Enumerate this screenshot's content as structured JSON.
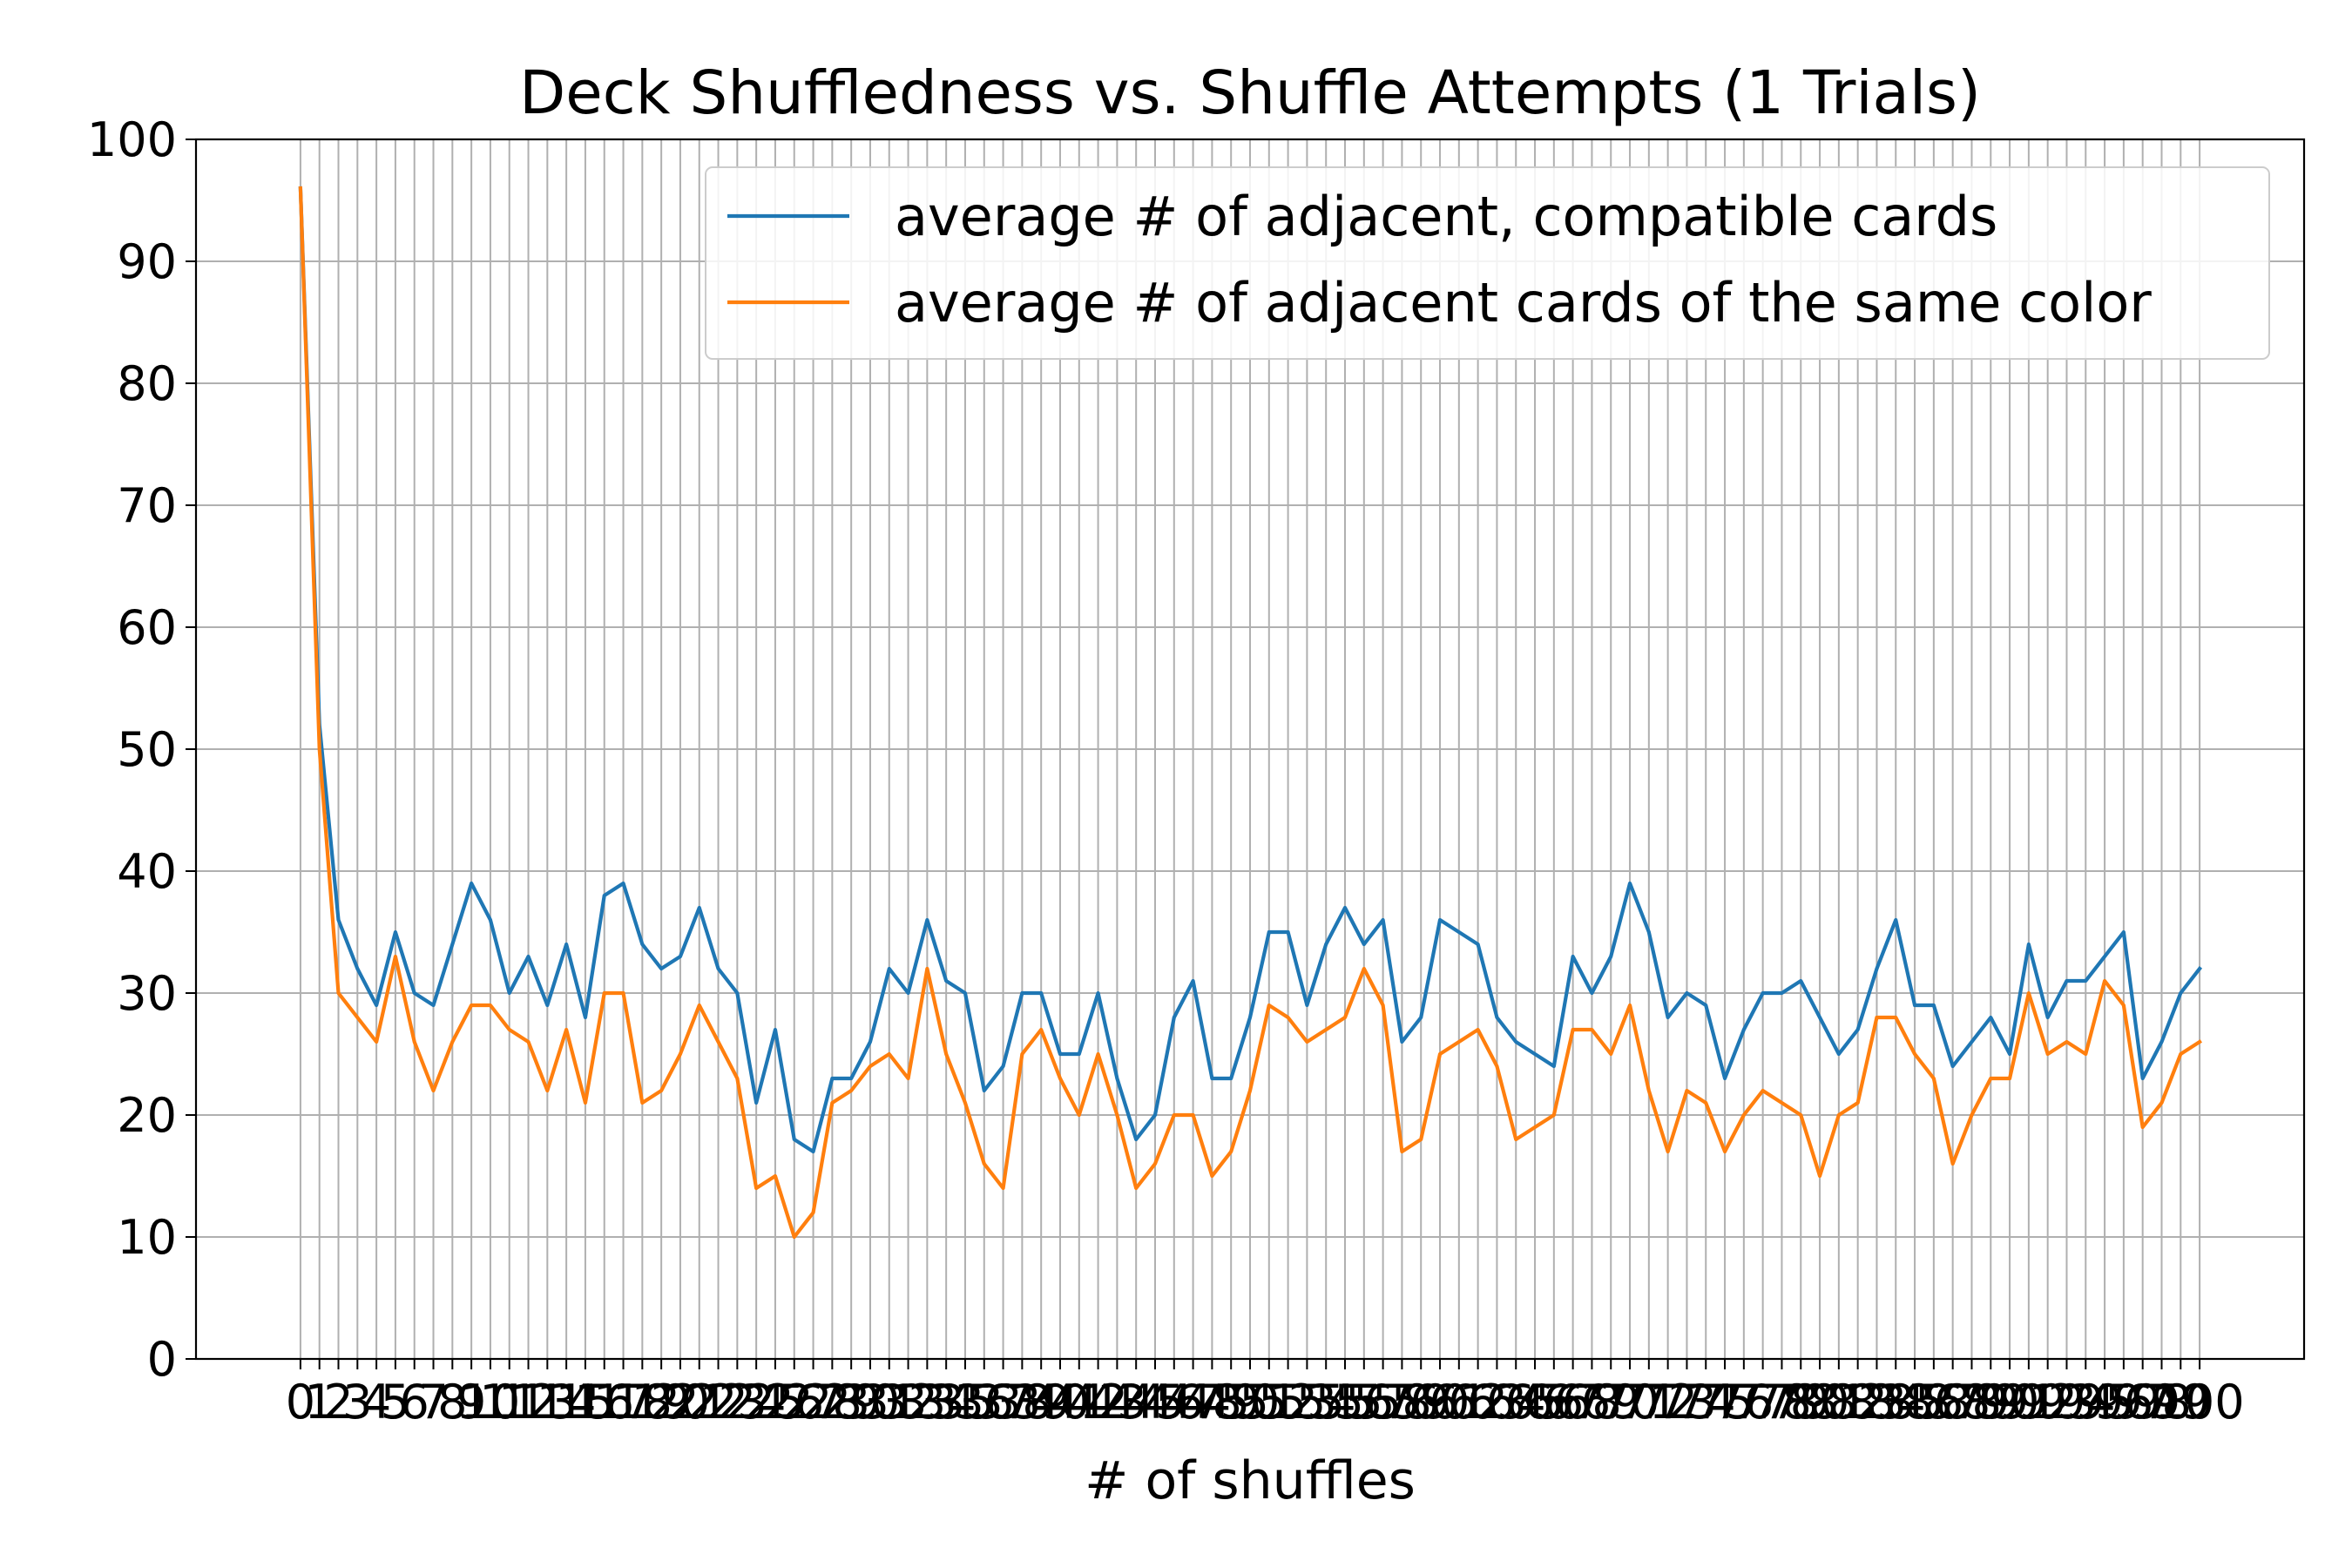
{
  "chart_data": {
    "type": "line",
    "title": "Deck Shuffledness vs. Shuffle Attempts (1 Trials)",
    "xlabel": "# of shuffles",
    "ylabel": "",
    "xlim": [
      -5.5,
      105.5
    ],
    "ylim": [
      0,
      100
    ],
    "yticks": [
      0,
      10,
      20,
      30,
      40,
      50,
      60,
      70,
      80,
      90,
      100
    ],
    "xticks_start": 0,
    "xticks_end": 100,
    "grid": true,
    "legend_position": "top-right",
    "series": [
      {
        "name": "average # of adjacent, compatible cards",
        "color": "#1f77b4",
        "values": [
          96,
          52,
          36,
          32,
          29,
          35,
          30,
          29,
          34,
          39,
          36,
          30,
          33,
          29,
          34,
          28,
          38,
          39,
          34,
          32,
          33,
          37,
          32,
          30,
          21,
          27,
          18,
          17,
          23,
          23,
          26,
          32,
          30,
          36,
          31,
          30,
          22,
          24,
          30,
          30,
          25,
          25,
          30,
          23,
          18,
          20,
          28,
          31,
          23,
          23,
          28,
          35,
          35,
          29,
          34,
          37,
          34,
          36,
          26,
          28,
          36,
          35,
          34,
          28,
          26,
          25,
          24,
          33,
          30,
          33,
          39,
          35,
          28,
          30,
          29,
          23,
          27,
          30,
          30,
          31,
          28,
          25,
          27,
          32,
          36,
          29,
          29,
          24,
          26,
          28,
          25,
          34,
          28,
          31,
          31,
          33,
          35,
          23,
          26,
          30,
          32
        ]
      },
      {
        "name": "average # of adjacent cards of the same color",
        "color": "#ff7f0e",
        "values": [
          96,
          50,
          30,
          28,
          26,
          33,
          26,
          22,
          26,
          29,
          29,
          27,
          26,
          22,
          27,
          21,
          30,
          30,
          21,
          22,
          25,
          29,
          26,
          23,
          14,
          15,
          10,
          12,
          21,
          22,
          24,
          25,
          23,
          32,
          25,
          21,
          16,
          14,
          25,
          27,
          23,
          20,
          25,
          20,
          14,
          16,
          20,
          20,
          15,
          17,
          22,
          29,
          28,
          26,
          27,
          28,
          32,
          29,
          17,
          18,
          25,
          26,
          27,
          24,
          18,
          19,
          20,
          27,
          27,
          25,
          29,
          22,
          17,
          22,
          21,
          17,
          20,
          22,
          21,
          20,
          15,
          20,
          21,
          28,
          28,
          25,
          23,
          16,
          20,
          23,
          23,
          30,
          25,
          26,
          25,
          31,
          29,
          19,
          21,
          25,
          26
        ]
      }
    ]
  }
}
